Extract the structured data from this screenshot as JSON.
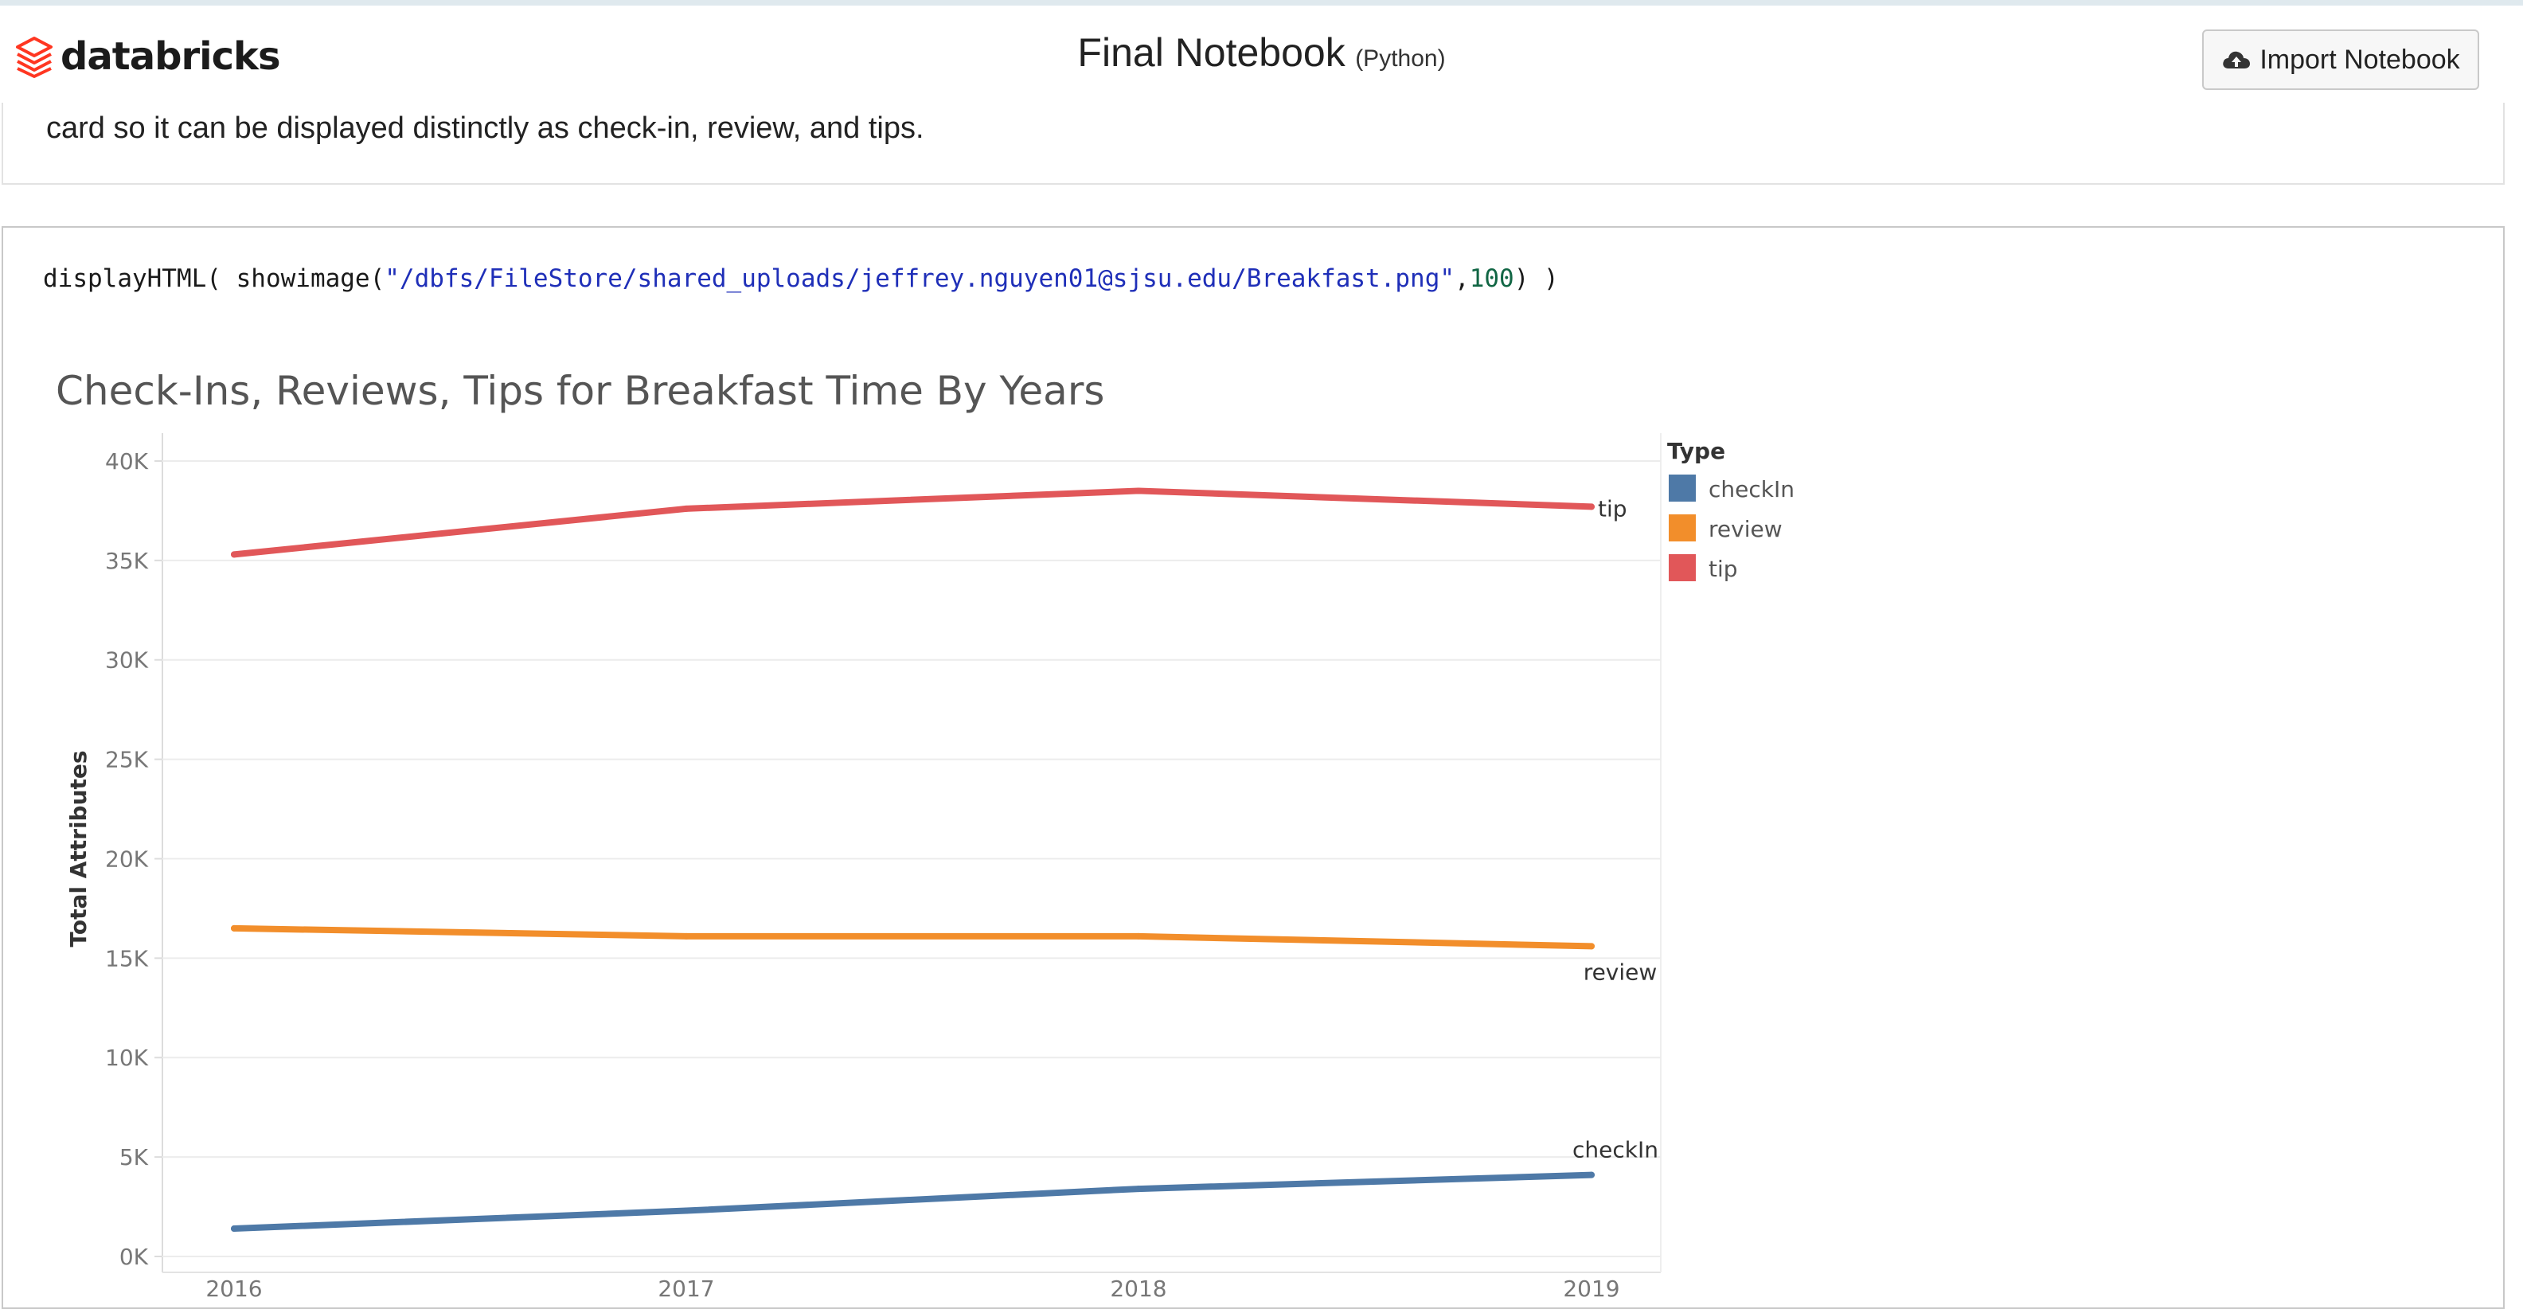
{
  "header": {
    "logo_text": "databricks",
    "notebook_title": "Final Notebook",
    "notebook_language": "(Python)",
    "import_button_label": "Import Notebook"
  },
  "markdown_cell": {
    "text": "card so it can be displayed distinctly as check-in, review, and tips."
  },
  "code_cell": {
    "prefix": "displayHTML( showimage(",
    "string_arg": "\"/dbfs/FileStore/shared_uploads/jeffrey.nguyen01@sjsu.edu/Breakfast.png\"",
    "separator": ",",
    "number_arg": "100",
    "suffix": ") )"
  },
  "colors": {
    "checkin": "#4e79a7",
    "review": "#f28e2b",
    "tip": "#e15759",
    "gridline": "#ececec"
  },
  "chart_data": {
    "type": "line",
    "title": "Check-Ins, Reviews, Tips for Breakfast Time By Years",
    "xlabel": "",
    "ylabel": "Total Attributes",
    "categories": [
      "2016",
      "2017",
      "2018",
      "2019"
    ],
    "y_ticks": [
      "0K",
      "5K",
      "10K",
      "15K",
      "20K",
      "25K",
      "30K",
      "35K",
      "40K"
    ],
    "ylim": [
      0,
      41000
    ],
    "grid": true,
    "legend_title": "Type",
    "legend_position": "right",
    "series": [
      {
        "name": "checkIn",
        "values": [
          1400,
          2300,
          3400,
          4100
        ],
        "color": "#4e79a7",
        "end_label": "checkIn"
      },
      {
        "name": "review",
        "values": [
          16500,
          16100,
          16100,
          15600
        ],
        "color": "#f28e2b",
        "end_label": "review"
      },
      {
        "name": "tip",
        "values": [
          35300,
          37600,
          38500,
          37700
        ],
        "color": "#e15759",
        "end_label": "tip"
      }
    ]
  }
}
